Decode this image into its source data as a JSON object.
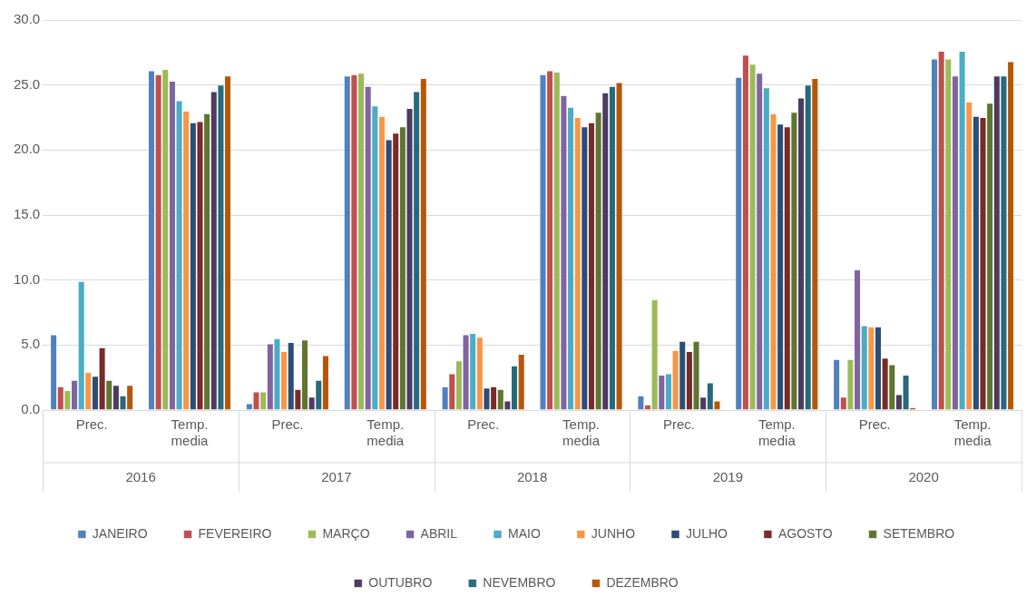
{
  "chart_data": {
    "type": "bar",
    "categories": [
      "Prec.",
      "Temp. media",
      "Prec.",
      "Temp. media",
      "Prec.",
      "Temp. media",
      "Prec.",
      "Temp. media",
      "Prec.",
      "Temp. media"
    ],
    "annotations": [
      "2016",
      "2017",
      "2018",
      "2019",
      "2020"
    ],
    "ylim": [
      0,
      30
    ],
    "yticks": [
      {
        "value": 0,
        "label": "0.0"
      },
      {
        "value": 5,
        "label": "5.0"
      },
      {
        "value": 10,
        "label": "10.0"
      },
      {
        "value": 15,
        "label": "15.0"
      },
      {
        "value": 20,
        "label": "20.0"
      },
      {
        "value": 25,
        "label": "25.0"
      },
      {
        "value": 30,
        "label": "30.0"
      }
    ],
    "grid": "y",
    "legend": "bottom",
    "series": [
      {
        "name": "JANEIRO",
        "color": "#4f81bd",
        "values": [
          5.8,
          26.1,
          0.5,
          25.7,
          1.8,
          25.8,
          1.1,
          25.6,
          3.9,
          27.0
        ]
      },
      {
        "name": "FEVEREIRO",
        "color": "#c0504d",
        "values": [
          1.8,
          25.8,
          1.4,
          25.8,
          2.8,
          26.1,
          0.4,
          27.3,
          1.0,
          27.6
        ]
      },
      {
        "name": "MARÇO",
        "color": "#9bbb59",
        "values": [
          1.5,
          26.2,
          1.4,
          25.9,
          3.8,
          26.0,
          8.5,
          26.6,
          3.9,
          27.0
        ]
      },
      {
        "name": "ABRIL",
        "color": "#8064a2",
        "values": [
          2.3,
          25.3,
          5.1,
          24.9,
          5.8,
          24.2,
          2.7,
          25.9,
          10.8,
          25.7
        ]
      },
      {
        "name": "MAIO",
        "color": "#4bacc6",
        "values": [
          9.9,
          23.8,
          5.5,
          23.4,
          5.9,
          23.3,
          2.8,
          24.8,
          6.5,
          27.6
        ]
      },
      {
        "name": "JUNHO",
        "color": "#f79646",
        "values": [
          2.9,
          23.0,
          4.5,
          22.6,
          5.6,
          22.5,
          4.6,
          22.8,
          6.4,
          23.7
        ]
      },
      {
        "name": "JULHO",
        "color": "#2c4d75",
        "values": [
          2.6,
          22.1,
          5.2,
          20.8,
          1.7,
          21.8,
          5.3,
          22.0,
          6.4,
          22.6
        ]
      },
      {
        "name": "AGOSTO",
        "color": "#772c2a",
        "values": [
          4.8,
          22.2,
          1.6,
          21.3,
          1.8,
          22.1,
          4.5,
          21.8,
          4.0,
          22.5
        ]
      },
      {
        "name": "SETEMBRO",
        "color": "#5f7530",
        "values": [
          2.3,
          22.8,
          5.4,
          21.8,
          1.6,
          22.9,
          5.3,
          22.9,
          3.5,
          23.6
        ]
      },
      {
        "name": "OUTUBRO",
        "color": "#4d3b62",
        "values": [
          1.9,
          24.5,
          1.0,
          23.2,
          0.7,
          24.4,
          1.0,
          24.0,
          1.2,
          25.7
        ]
      },
      {
        "name": "NEVEMBRO",
        "color": "#276a7c",
        "values": [
          1.1,
          25.0,
          2.3,
          24.5,
          3.4,
          24.9,
          2.1,
          25.0,
          2.7,
          25.7
        ]
      },
      {
        "name": "DEZEMBRO",
        "color": "#b65708",
        "values": [
          1.9,
          25.7,
          4.2,
          25.5,
          4.3,
          25.2,
          0.7,
          25.5,
          0.2,
          26.8
        ]
      }
    ]
  }
}
